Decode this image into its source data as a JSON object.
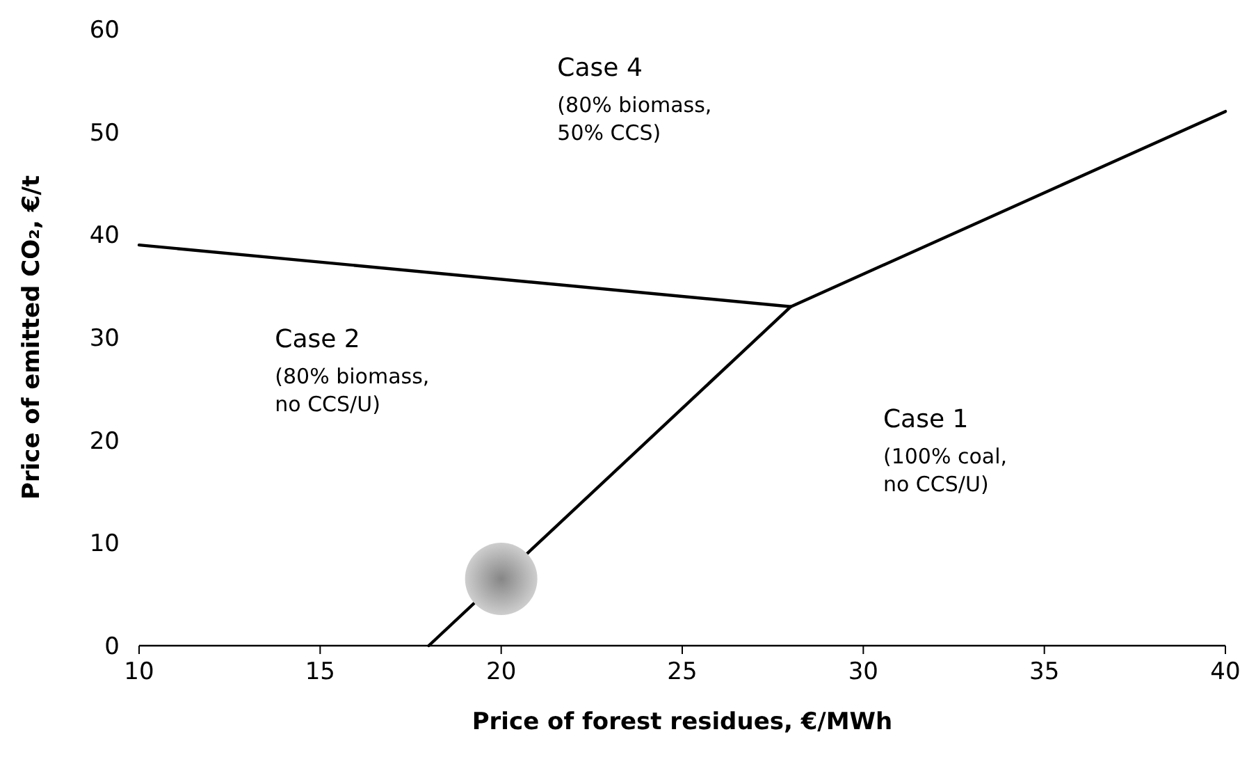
{
  "chart_data": {
    "type": "line",
    "xlabel": "Price of forest residues, €/MWh",
    "ylabel": "Price of emitted CO₂, €/t",
    "xlim": [
      10,
      40
    ],
    "xticks": [
      10,
      15,
      20,
      25,
      30,
      35,
      40
    ],
    "ylim": [
      0,
      60
    ],
    "yticks": [
      0,
      10,
      20,
      30,
      40,
      50,
      60
    ],
    "grid": false,
    "marker": "none",
    "line_style": "solid",
    "series": [
      {
        "color": "#000000",
        "x": [
          10,
          28,
          40
        ],
        "values": [
          39,
          33,
          52
        ]
      },
      {
        "color": "#000000",
        "x": [
          18,
          28
        ],
        "values": [
          0,
          33
        ]
      },
      {
        "type": "scatter",
        "color": "#a6a6a6",
        "marker": "circle",
        "x": [
          20
        ],
        "values": [
          6.5
        ]
      }
    ],
    "annotations": [
      "Case 4\n(80% biomass,\n50% CCS)",
      "Case 2\n(80% biomass,\nno CCS/U)",
      "Case 1\n(100% coal,\nno CCS/U)"
    ]
  }
}
